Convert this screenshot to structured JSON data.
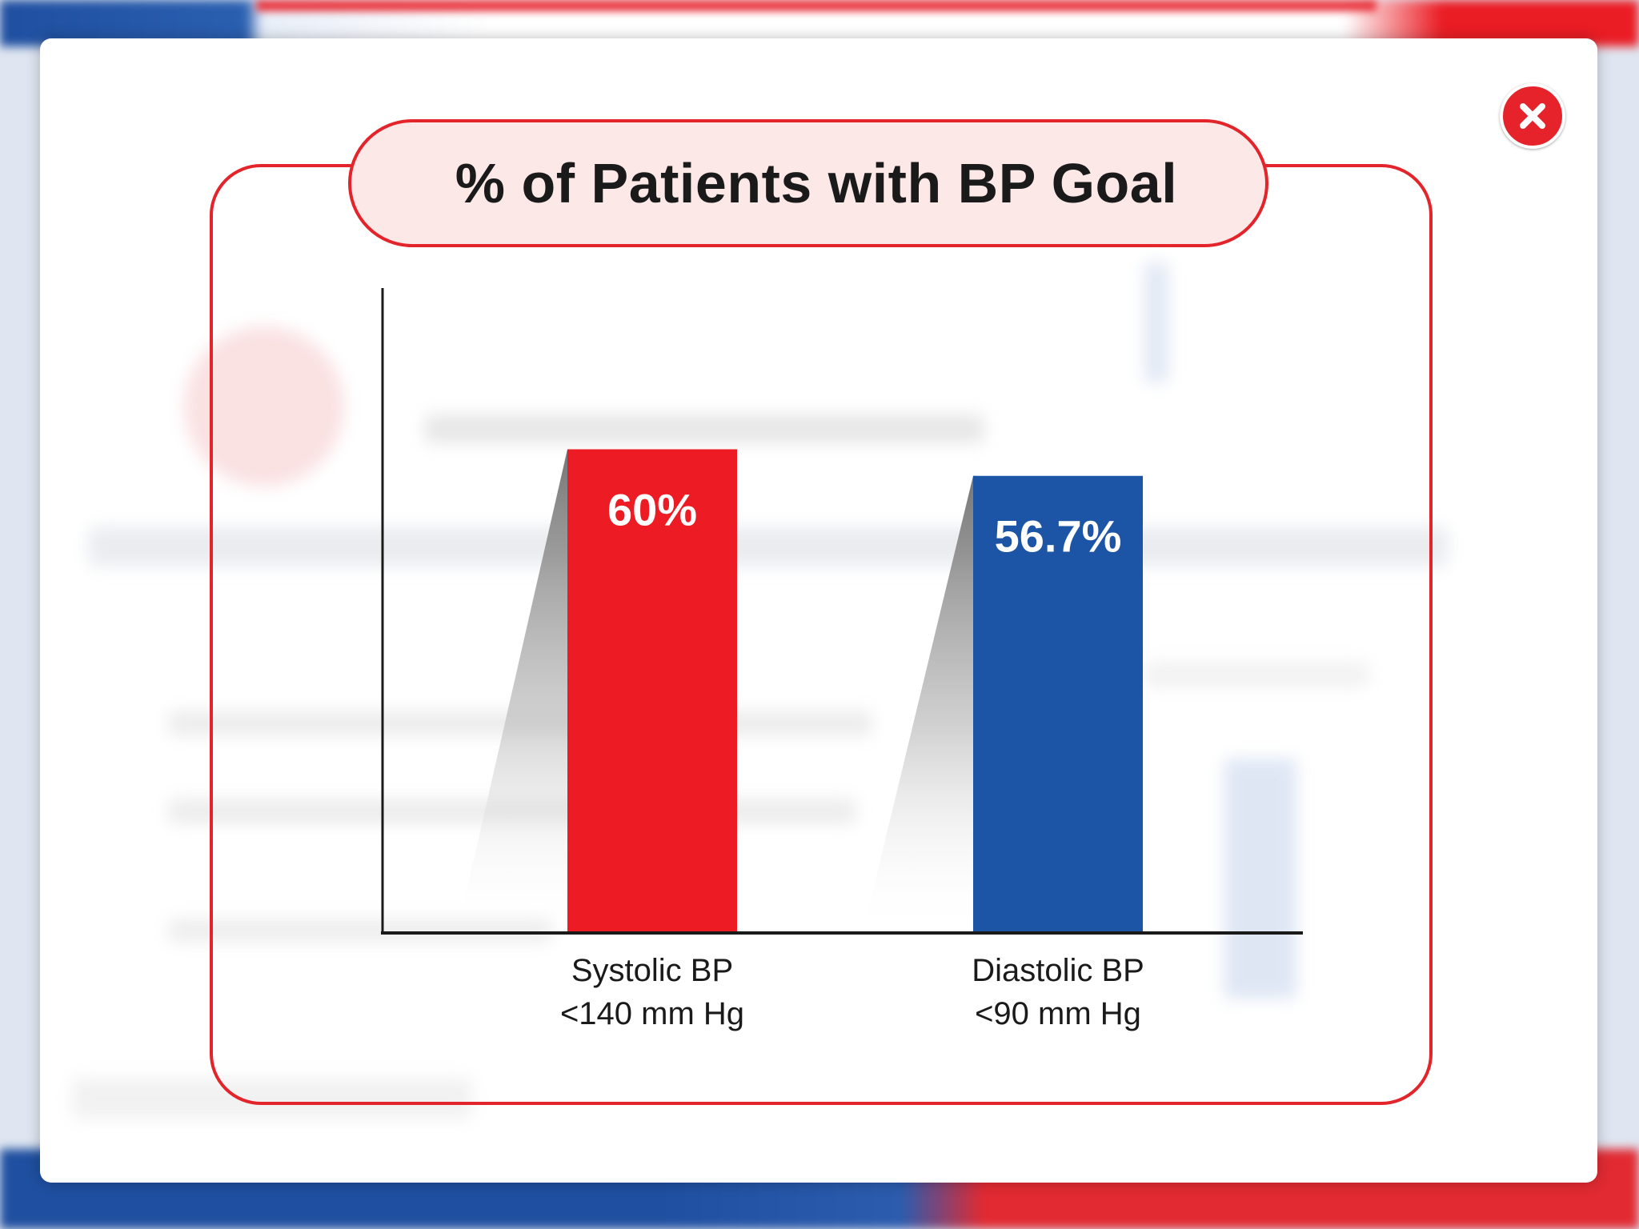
{
  "close_icon": "close-icon",
  "colors": {
    "frame": "#e3242b",
    "title_bg": "#fde8e8",
    "systolic": "#ed1c24",
    "diastolic": "#1c55a5"
  },
  "chart_data": {
    "type": "bar",
    "title": "% of Patients with BP Goal",
    "categories": [
      [
        "Systolic BP",
        "<140 mm Hg"
      ],
      [
        "Diastolic BP",
        "<90 mm Hg"
      ]
    ],
    "values": [
      60,
      56.7
    ],
    "value_labels": [
      "60%",
      "56.7%"
    ],
    "bar_colors": [
      "#ed1c24",
      "#1c55a5"
    ],
    "ylim": [
      0,
      80
    ],
    "grid": false,
    "legend": "none"
  }
}
